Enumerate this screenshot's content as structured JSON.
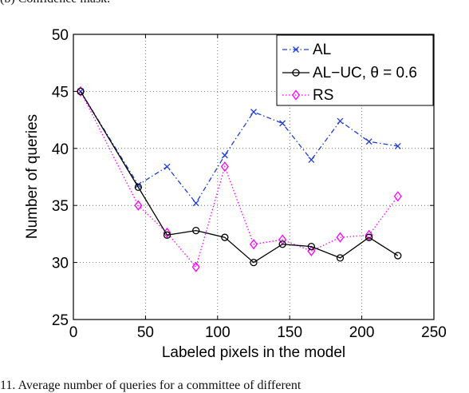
{
  "captions": {
    "top": "(b) Confidence mask.",
    "bottom": "11.   Average number of queries for a committee of different"
  },
  "colors": {
    "AL": "#1f3fd6",
    "AL-UC": "#000000",
    "RS": "#ff00ff"
  },
  "chart_data": {
    "type": "line",
    "xlabel": "Labeled pixels in the model",
    "ylabel": "Number of queries",
    "xlim": [
      0,
      250
    ],
    "ylim": [
      25,
      50
    ],
    "xticks": [
      0,
      50,
      100,
      150,
      200,
      250
    ],
    "yticks": [
      25,
      30,
      35,
      40,
      45,
      50
    ],
    "grid": true,
    "legend_position": "top-right",
    "x": [
      5,
      45,
      65,
      85,
      105,
      125,
      145,
      165,
      185,
      205,
      225
    ],
    "series": [
      {
        "name": "AL",
        "marker": "x",
        "line": "dashdot",
        "values": [
          45,
          36.8,
          38.4,
          35.2,
          39.4,
          43.2,
          42.2,
          39.0,
          42.4,
          40.6,
          40.2
        ]
      },
      {
        "name": "AL−UC, θ = 0.6",
        "marker": "o",
        "line": "solid",
        "values": [
          45,
          36.6,
          32.4,
          32.8,
          32.2,
          30.0,
          31.6,
          31.4,
          30.4,
          32.2,
          30.6
        ]
      },
      {
        "name": "RS",
        "marker": "diamond",
        "line": "dotted",
        "values": [
          45,
          35.0,
          32.6,
          29.6,
          38.4,
          31.6,
          32.0,
          31.0,
          32.2,
          32.4,
          35.8
        ]
      }
    ]
  }
}
